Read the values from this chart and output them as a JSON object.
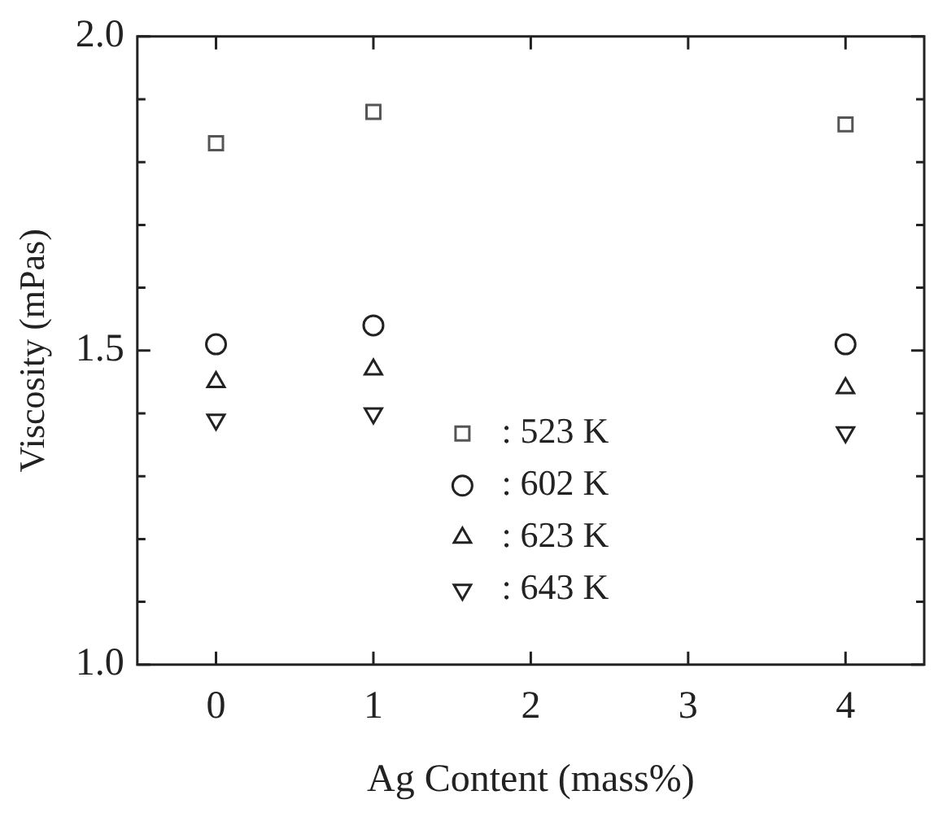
{
  "chart_data": {
    "type": "scatter",
    "xlabel": "Ag Content (mass%)",
    "ylabel": "Viscosity (mPas)",
    "xlim": [
      -0.5,
      4.5
    ],
    "xticks": [
      0,
      1,
      2,
      3,
      4
    ],
    "ylim": [
      1.0,
      2.0
    ],
    "yticks": [
      {
        "value": 1,
        "label": "1.0"
      },
      {
        "value": 1.1,
        "label": null
      },
      {
        "value": 1.2,
        "label": null
      },
      {
        "value": 1.3,
        "label": null
      },
      {
        "value": 1.4,
        "label": null
      },
      1.5,
      {
        "value": 1.6,
        "label": null
      },
      {
        "value": 1.7,
        "label": null
      },
      {
        "value": 1.8,
        "label": null
      },
      {
        "value": 1.9,
        "label": null
      },
      {
        "value": 2,
        "label": "2.0"
      }
    ],
    "grid": false,
    "legend": "bottom",
    "series": [
      {
        "name": ": 523 K",
        "color": "#555555",
        "marker": "square",
        "x": [
          0,
          1,
          4
        ],
        "values": [
          1.83,
          1.88,
          1.86
        ]
      },
      {
        "name": ": 602 K",
        "color": "#222222",
        "marker": "circle",
        "x": [
          0,
          1,
          4
        ],
        "values": [
          1.51,
          1.54,
          1.51
        ]
      },
      {
        "name": ": 623 K",
        "color": "#222222",
        "marker": "triangle",
        "x": [
          0,
          1,
          4
        ],
        "values": [
          1.45,
          1.47,
          1.44
        ]
      },
      {
        "name": ": 643 K",
        "color": "#222222",
        "marker": "triangle_down",
        "x": [
          0,
          1,
          4
        ],
        "values": [
          1.39,
          1.4,
          1.37
        ]
      }
    ]
  }
}
